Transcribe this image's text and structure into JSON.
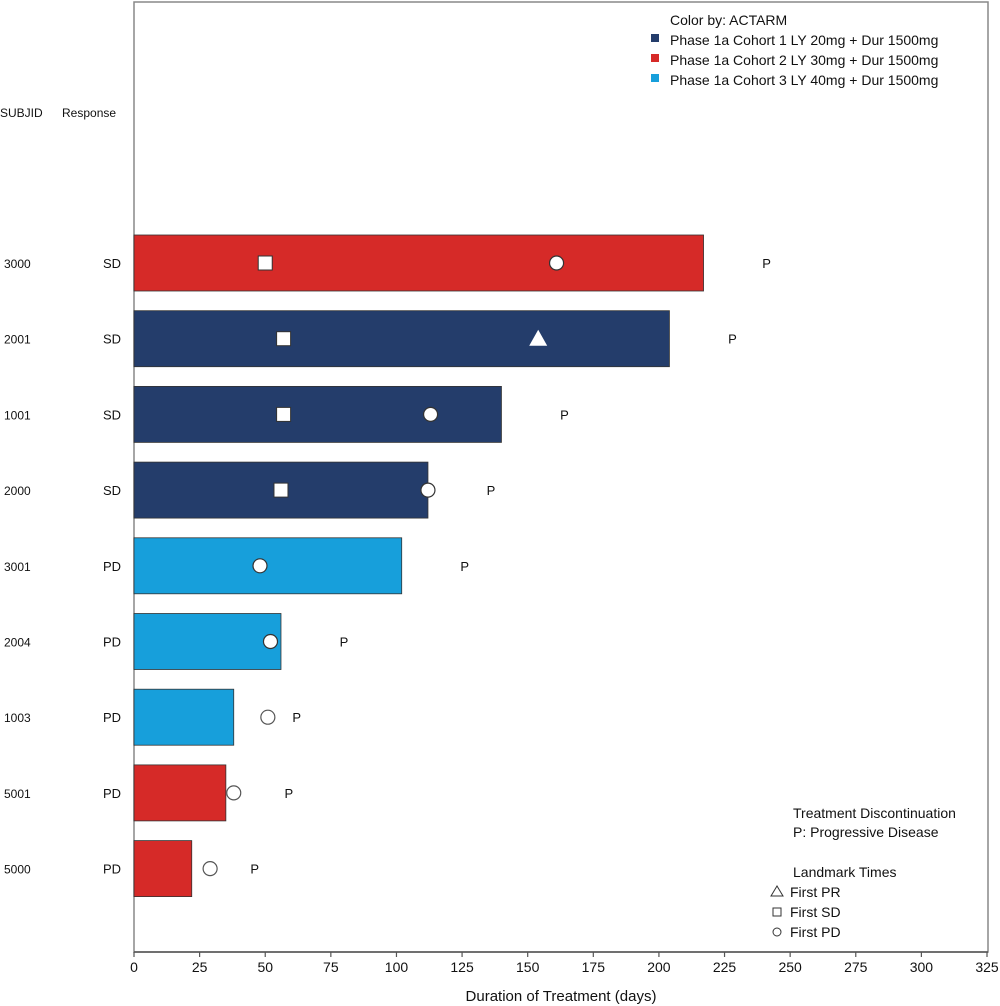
{
  "chart_data": {
    "type": "bar",
    "orientation": "horizontal",
    "title": "",
    "xlabel": "Duration of Treatment (days)",
    "xlim": [
      0,
      325
    ],
    "xticks": [
      0,
      25,
      50,
      75,
      100,
      125,
      150,
      175,
      200,
      225,
      250,
      275,
      300,
      325
    ],
    "column_headers": {
      "subjid": "SUBJID",
      "response": "Response"
    },
    "legend_color": {
      "title": "Color by: ACTARM",
      "placement": "top-right",
      "entries": [
        {
          "label": "Phase 1a Cohort 1 LY 20mg + Dur 1500mg",
          "color": "#243d6b"
        },
        {
          "label": "Phase 1a Cohort 2 LY 30mg + Dur 1500mg",
          "color": "#d62a28"
        },
        {
          "label": "Phase 1a Cohort 3 LY 40mg + Dur 1500mg",
          "color": "#179fdb"
        }
      ]
    },
    "legend_discontinuation": {
      "title": "Treatment Discontinuation",
      "entries": [
        "P: Progressive Disease"
      ],
      "placement": "bottom-right"
    },
    "legend_landmarks": {
      "title": "Landmark Times",
      "placement": "bottom-right",
      "entries": [
        {
          "symbol": "triangle",
          "glyph": "△",
          "label": "First PR"
        },
        {
          "symbol": "square",
          "glyph": "□",
          "label": "First SD"
        },
        {
          "symbol": "circle",
          "glyph": "○",
          "label": "First PD"
        }
      ]
    },
    "discontinuation_marker": "P",
    "subjects": [
      {
        "subjid": "3000",
        "response": "SD",
        "arm": 1,
        "duration": 217,
        "landmarks": [
          {
            "type": "square",
            "day": 50
          },
          {
            "type": "circle",
            "day": 161
          }
        ],
        "discontinuation_day": 241
      },
      {
        "subjid": "2001",
        "response": "SD",
        "arm": 0,
        "duration": 204,
        "landmarks": [
          {
            "type": "square",
            "day": 57
          },
          {
            "type": "triangle",
            "day": 154
          }
        ],
        "discontinuation_day": 228
      },
      {
        "subjid": "1001",
        "response": "SD",
        "arm": 0,
        "duration": 140,
        "landmarks": [
          {
            "type": "square",
            "day": 57
          },
          {
            "type": "circle",
            "day": 113
          }
        ],
        "discontinuation_day": 164
      },
      {
        "subjid": "2000",
        "response": "SD",
        "arm": 0,
        "duration": 112,
        "landmarks": [
          {
            "type": "square",
            "day": 56
          },
          {
            "type": "circle",
            "day": 112
          }
        ],
        "discontinuation_day": 136
      },
      {
        "subjid": "3001",
        "response": "PD",
        "arm": 2,
        "duration": 102,
        "landmarks": [
          {
            "type": "circle",
            "day": 48
          }
        ],
        "discontinuation_day": 126
      },
      {
        "subjid": "2004",
        "response": "PD",
        "arm": 2,
        "duration": 56,
        "landmarks": [
          {
            "type": "circle",
            "day": 52
          }
        ],
        "discontinuation_day": 80
      },
      {
        "subjid": "1003",
        "response": "PD",
        "arm": 2,
        "duration": 38,
        "landmarks": [
          {
            "type": "circle",
            "day": 51
          }
        ],
        "discontinuation_day": 62
      },
      {
        "subjid": "5001",
        "response": "PD",
        "arm": 1,
        "duration": 35,
        "landmarks": [
          {
            "type": "circle",
            "day": 38
          }
        ],
        "discontinuation_day": 59
      },
      {
        "subjid": "5000",
        "response": "PD",
        "arm": 1,
        "duration": 22,
        "landmarks": [
          {
            "type": "circle",
            "day": 29
          }
        ],
        "discontinuation_day": 46
      }
    ]
  }
}
